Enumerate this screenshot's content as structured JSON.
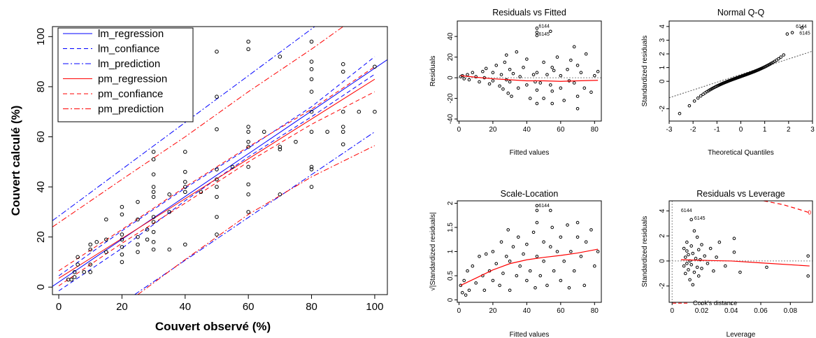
{
  "chart_data": [
    {
      "type": "line",
      "title": "",
      "xlabel": "Couvert observé (%)",
      "ylabel": "Couvert calculé (%)",
      "xlim": [
        -2,
        104
      ],
      "ylim": [
        -3,
        104
      ],
      "xticks": [
        0,
        20,
        40,
        60,
        80,
        100
      ],
      "yticks": [
        0,
        20,
        40,
        60,
        80,
        100
      ],
      "legend_position": "top-left",
      "series": [
        {
          "name": "lm_regression",
          "color": "#0000ff",
          "style": "solid",
          "x": [
            -2,
            104
          ],
          "y": [
            0.3,
            90.8
          ]
        },
        {
          "name": "lm_confiance",
          "color": "#0000ff",
          "style": "dashed",
          "x": [
            0,
            20,
            40,
            60,
            80,
            100
          ],
          "y": [
            4.5,
            22.5,
            39.5,
            55.5,
            72,
            92
          ]
        },
        {
          "name": "lm_confiance",
          "color": "#0000ff",
          "style": "dashed",
          "x": [
            0,
            20,
            40,
            60,
            80,
            100
          ],
          "y": [
            -1.5,
            15.5,
            34.5,
            52,
            68,
            85
          ]
        },
        {
          "name": "lm_prediction",
          "color": "#0000ff",
          "style": "dashdot",
          "x": [
            -2,
            81
          ],
          "y": [
            26.5,
            104
          ]
        },
        {
          "name": "lm_prediction",
          "color": "#0000ff",
          "style": "dashdot",
          "x": [
            24,
            100
          ],
          "y": [
            -3,
            62
          ]
        },
        {
          "name": "pm_regression",
          "color": "#ff0000",
          "style": "solid",
          "x": [
            0,
            100
          ],
          "y": [
            3.5,
            83
          ]
        },
        {
          "name": "pm_confiance",
          "color": "#ff0000",
          "style": "dashed",
          "x": [
            0,
            20,
            40,
            60,
            80,
            100
          ],
          "y": [
            6.5,
            23,
            40,
            56,
            71,
            88
          ]
        },
        {
          "name": "pm_confiance",
          "color": "#ff0000",
          "style": "dashed",
          "x": [
            0,
            20,
            40,
            60,
            80,
            100
          ],
          "y": [
            0.5,
            17.5,
            33.5,
            50,
            65,
            78
          ]
        },
        {
          "name": "pm_prediction",
          "color": "#ff0000",
          "style": "dashdot",
          "x": [
            -2,
            20,
            40,
            60,
            80,
            90
          ],
          "y": [
            24,
            43,
            60,
            78,
            95,
            104
          ]
        },
        {
          "name": "pm_prediction",
          "color": "#ff0000",
          "style": "dashdot",
          "x": [
            25,
            40,
            60,
            80,
            100
          ],
          "y": [
            -3,
            11,
            29,
            44,
            56.5
          ]
        }
      ],
      "points": [
        [
          3,
          3
        ],
        [
          4,
          3
        ],
        [
          5,
          4
        ],
        [
          5,
          6
        ],
        [
          6,
          9
        ],
        [
          6,
          12
        ],
        [
          8,
          6
        ],
        [
          10,
          6
        ],
        [
          10,
          9
        ],
        [
          10,
          15
        ],
        [
          10,
          17
        ],
        [
          12,
          18
        ],
        [
          15,
          14
        ],
        [
          15,
          19
        ],
        [
          15,
          27
        ],
        [
          20,
          10
        ],
        [
          20,
          13
        ],
        [
          20,
          16
        ],
        [
          20,
          19
        ],
        [
          20,
          21
        ],
        [
          20,
          29
        ],
        [
          20,
          32
        ],
        [
          25,
          14
        ],
        [
          25,
          17
        ],
        [
          25,
          20
        ],
        [
          25,
          27
        ],
        [
          25,
          34
        ],
        [
          28,
          19
        ],
        [
          28,
          23
        ],
        [
          30,
          15
        ],
        [
          30,
          18
        ],
        [
          30,
          22
        ],
        [
          30,
          26
        ],
        [
          30,
          28
        ],
        [
          30,
          36
        ],
        [
          30,
          38
        ],
        [
          30,
          40
        ],
        [
          30,
          45
        ],
        [
          30,
          51
        ],
        [
          30,
          54
        ],
        [
          35,
          15
        ],
        [
          35,
          30
        ],
        [
          35,
          37
        ],
        [
          40,
          17
        ],
        [
          40,
          38
        ],
        [
          40,
          40
        ],
        [
          40,
          42
        ],
        [
          40,
          46
        ],
        [
          40,
          54
        ],
        [
          45,
          38
        ],
        [
          50,
          21
        ],
        [
          50,
          28
        ],
        [
          50,
          36
        ],
        [
          50,
          40
        ],
        [
          50,
          43
        ],
        [
          50,
          47
        ],
        [
          50,
          63
        ],
        [
          50,
          76
        ],
        [
          50,
          94
        ],
        [
          55,
          48
        ],
        [
          60,
          30
        ],
        [
          60,
          37
        ],
        [
          60,
          41
        ],
        [
          60,
          48
        ],
        [
          60,
          56
        ],
        [
          60,
          58
        ],
        [
          60,
          62
        ],
        [
          60,
          64
        ],
        [
          60,
          95
        ],
        [
          60,
          98
        ],
        [
          65,
          62
        ],
        [
          70,
          37
        ],
        [
          70,
          55
        ],
        [
          70,
          56
        ],
        [
          70,
          92
        ],
        [
          75,
          58
        ],
        [
          80,
          40
        ],
        [
          80,
          47
        ],
        [
          80,
          48
        ],
        [
          80,
          62
        ],
        [
          80,
          70
        ],
        [
          80,
          78
        ],
        [
          80,
          83
        ],
        [
          80,
          87
        ],
        [
          80,
          90
        ],
        [
          80,
          98
        ],
        [
          85,
          62
        ],
        [
          90,
          57
        ],
        [
          90,
          62
        ],
        [
          90,
          64
        ],
        [
          90,
          70
        ],
        [
          90,
          86
        ],
        [
          90,
          89
        ],
        [
          95,
          70
        ],
        [
          100,
          70
        ],
        [
          100,
          88
        ]
      ]
    },
    {
      "type": "scatter",
      "title": "Residuals vs Fitted",
      "xlabel": "Fitted values",
      "ylabel": "Residuals",
      "xlim": [
        -1,
        84
      ],
      "ylim": [
        -42,
        55
      ],
      "xticks": [
        0,
        20,
        40,
        60,
        80
      ],
      "yticks": [
        -40,
        -20,
        0,
        20,
        40
      ],
      "labels": [
        "6144",
        "6145"
      ],
      "smooth": {
        "x": [
          1,
          10,
          20,
          30,
          40,
          50,
          60,
          70,
          82
        ],
        "y": [
          2,
          0.5,
          -1,
          -2,
          -3,
          -3,
          -3.5,
          -3,
          -2.5
        ]
      },
      "points": [
        [
          1,
          1
        ],
        [
          2,
          2
        ],
        [
          3,
          -1
        ],
        [
          5,
          3
        ],
        [
          6,
          -2
        ],
        [
          8,
          5
        ],
        [
          10,
          1
        ],
        [
          12,
          -4
        ],
        [
          14,
          6
        ],
        [
          15,
          0
        ],
        [
          16,
          9
        ],
        [
          18,
          -6
        ],
        [
          20,
          5
        ],
        [
          20,
          -3
        ],
        [
          22,
          12
        ],
        [
          24,
          -8
        ],
        [
          25,
          3
        ],
        [
          26,
          -11
        ],
        [
          27,
          15
        ],
        [
          28,
          -2
        ],
        [
          28,
          22
        ],
        [
          29,
          -15
        ],
        [
          30,
          8
        ],
        [
          30,
          -4
        ],
        [
          31,
          -18
        ],
        [
          32,
          4
        ],
        [
          34,
          25
        ],
        [
          35,
          -10
        ],
        [
          36,
          1
        ],
        [
          38,
          10
        ],
        [
          40,
          -7
        ],
        [
          40,
          18
        ],
        [
          42,
          -20
        ],
        [
          44,
          3
        ],
        [
          45,
          -4
        ],
        [
          46,
          44
        ],
        [
          46,
          41
        ],
        [
          46,
          48
        ],
        [
          46,
          5
        ],
        [
          46,
          -12
        ],
        [
          46,
          -25
        ],
        [
          48,
          -5
        ],
        [
          50,
          15
        ],
        [
          50,
          -20
        ],
        [
          52,
          3
        ],
        [
          54,
          -7
        ],
        [
          54,
          45
        ],
        [
          55,
          10
        ],
        [
          55,
          -13
        ],
        [
          55,
          -25
        ],
        [
          56,
          7
        ],
        [
          58,
          20
        ],
        [
          60,
          2
        ],
        [
          60,
          -10
        ],
        [
          62,
          -22
        ],
        [
          64,
          8
        ],
        [
          65,
          -3
        ],
        [
          66,
          17
        ],
        [
          68,
          -5
        ],
        [
          68,
          30
        ],
        [
          70,
          -30
        ],
        [
          70,
          12
        ],
        [
          70,
          -18
        ],
        [
          72,
          5
        ],
        [
          74,
          -10
        ],
        [
          75,
          23
        ],
        [
          78,
          -14
        ],
        [
          80,
          2
        ],
        [
          82,
          6
        ]
      ]
    },
    {
      "type": "scatter",
      "title": "Normal Q-Q",
      "xlabel": "Theoretical Quantiles",
      "ylabel": "Standardized residuals",
      "xlim": [
        -3,
        3
      ],
      "ylim": [
        -2.9,
        4.4
      ],
      "xticks": [
        -3,
        -2,
        -1,
        0,
        1,
        2,
        3
      ],
      "yticks": [
        -2,
        0,
        1,
        2,
        3,
        4
      ],
      "labels": [
        "6144",
        "6145"
      ],
      "reference_line": {
        "x": [
          -3,
          3
        ],
        "y": [
          -1.2,
          2.2
        ]
      }
    },
    {
      "type": "scatter",
      "title": "Scale-Location",
      "xlabel": "Fitted values",
      "ylabel": "√|Standardized residuals|",
      "xlim": [
        -1,
        84
      ],
      "ylim": [
        -0.05,
        2.05
      ],
      "xticks": [
        0,
        20,
        40,
        60,
        80
      ],
      "yticks": [
        0.0,
        0.5,
        1.0,
        1.5,
        2.0
      ],
      "labels": [
        "6144"
      ],
      "smooth": {
        "x": [
          1,
          10,
          20,
          30,
          40,
          50,
          60,
          70,
          82
        ],
        "y": [
          0.3,
          0.45,
          0.62,
          0.75,
          0.83,
          0.88,
          0.92,
          0.97,
          1.05
        ]
      },
      "points": [
        [
          1,
          0.3
        ],
        [
          2,
          0.15
        ],
        [
          3,
          0.4
        ],
        [
          4,
          0.1
        ],
        [
          5,
          0.6
        ],
        [
          6,
          0.2
        ],
        [
          8,
          0.7
        ],
        [
          10,
          0.35
        ],
        [
          12,
          0.9
        ],
        [
          14,
          0.5
        ],
        [
          15,
          0.2
        ],
        [
          16,
          0.95
        ],
        [
          18,
          0.6
        ],
        [
          20,
          0.4
        ],
        [
          20,
          1.0
        ],
        [
          22,
          0.75
        ],
        [
          24,
          0.3
        ],
        [
          25,
          1.2
        ],
        [
          26,
          0.55
        ],
        [
          28,
          0.9
        ],
        [
          29,
          1.45
        ],
        [
          30,
          0.2
        ],
        [
          30,
          0.8
        ],
        [
          32,
          1.1
        ],
        [
          34,
          0.5
        ],
        [
          35,
          1.3
        ],
        [
          36,
          0.7
        ],
        [
          38,
          0.95
        ],
        [
          40,
          0.4
        ],
        [
          40,
          1.15
        ],
        [
          42,
          0.6
        ],
        [
          44,
          1.4
        ],
        [
          45,
          0.25
        ],
        [
          46,
          1.95
        ],
        [
          46,
          1.85
        ],
        [
          46,
          0.9
        ],
        [
          46,
          1.6
        ],
        [
          48,
          0.5
        ],
        [
          50,
          1.2
        ],
        [
          50,
          0.8
        ],
        [
          52,
          0.3
        ],
        [
          54,
          1.85
        ],
        [
          54,
          1.1
        ],
        [
          55,
          1.5
        ],
        [
          56,
          0.6
        ],
        [
          58,
          1.0
        ],
        [
          60,
          0.4
        ],
        [
          60,
          1.3
        ],
        [
          62,
          0.8
        ],
        [
          64,
          1.55
        ],
        [
          65,
          0.25
        ],
        [
          66,
          1.0
        ],
        [
          68,
          0.6
        ],
        [
          70,
          1.3
        ],
        [
          70,
          1.6
        ],
        [
          72,
          0.9
        ],
        [
          74,
          0.3
        ],
        [
          75,
          1.2
        ],
        [
          78,
          1.45
        ],
        [
          80,
          0.7
        ],
        [
          82,
          1.0
        ]
      ]
    },
    {
      "type": "scatter",
      "title": "Residuals vs Leverage",
      "xlabel": "Leverage",
      "ylabel": "Standardized residuals",
      "xlim": [
        -0.002,
        0.095
      ],
      "ylim": [
        -3.3,
        4.8
      ],
      "xticks": [
        0.0,
        0.02,
        0.04,
        0.06,
        0.08
      ],
      "yticks": [
        -2,
        0,
        2,
        4
      ],
      "labels": [
        "6144",
        "6145"
      ],
      "legend": "Cook's distance",
      "cook_label": "0",
      "smooth": {
        "x": [
          0.006,
          0.02,
          0.04,
          0.06,
          0.093
        ],
        "y": [
          0.1,
          0.05,
          0.0,
          -0.15,
          -0.4
        ]
      },
      "points": [
        [
          0.008,
          1.0
        ],
        [
          0.008,
          -0.4
        ],
        [
          0.009,
          0.3
        ],
        [
          0.009,
          -1.0
        ],
        [
          0.01,
          0.8
        ],
        [
          0.01,
          -0.2
        ],
        [
          0.01,
          1.5
        ],
        [
          0.011,
          -0.7
        ],
        [
          0.011,
          0.5
        ],
        [
          0.012,
          -1.5
        ],
        [
          0.012,
          0.0
        ],
        [
          0.013,
          3.3
        ],
        [
          0.013,
          1.2
        ],
        [
          0.013,
          -0.3
        ],
        [
          0.014,
          -1.9
        ],
        [
          0.014,
          0.6
        ],
        [
          0.015,
          2.4
        ],
        [
          0.015,
          -0.9
        ],
        [
          0.016,
          0.2
        ],
        [
          0.017,
          1.9
        ],
        [
          0.017,
          -0.5
        ],
        [
          0.018,
          0.9
        ],
        [
          0.018,
          -1.2
        ],
        [
          0.019,
          0.1
        ],
        [
          0.02,
          1.3
        ],
        [
          0.02,
          -0.6
        ],
        [
          0.022,
          0.4
        ],
        [
          0.024,
          -0.2
        ],
        [
          0.026,
          1.0
        ],
        [
          0.028,
          -0.8
        ],
        [
          0.03,
          0.3
        ],
        [
          0.032,
          1.5
        ],
        [
          0.036,
          -0.4
        ],
        [
          0.042,
          1.8
        ],
        [
          0.042,
          0.7
        ],
        [
          0.046,
          -0.9
        ],
        [
          0.064,
          -0.5
        ],
        [
          0.092,
          -1.2
        ],
        [
          0.092,
          0.4
        ]
      ]
    }
  ]
}
